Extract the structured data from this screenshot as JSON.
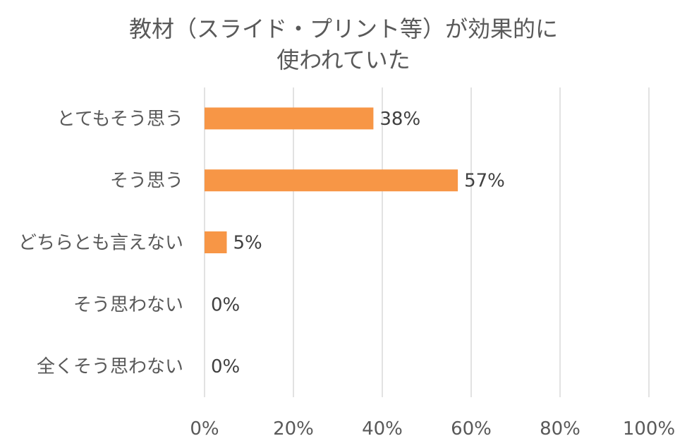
{
  "chart_data": {
    "type": "bar",
    "orientation": "horizontal",
    "title_lines": [
      "教材（スライド・プリント等）が効果的に",
      "使われていた"
    ],
    "categories": [
      "とてもそう思う",
      "そう思う",
      "どちらとも言えない",
      "そう思わない",
      "全くそう思わない"
    ],
    "values": [
      38,
      57,
      5,
      0,
      0
    ],
    "data_labels": [
      "38%",
      "57%",
      "5%",
      "0%",
      "0%"
    ],
    "xlim": [
      0,
      100
    ],
    "xticks": [
      0,
      20,
      40,
      60,
      80,
      100
    ],
    "xtick_labels": [
      "0%",
      "20%",
      "40%",
      "60%",
      "80%",
      "100%"
    ],
    "grid": true,
    "legend": "none",
    "bar_color": "#f79646",
    "text_color": "#595959",
    "grid_color": "#d9d9d9"
  }
}
